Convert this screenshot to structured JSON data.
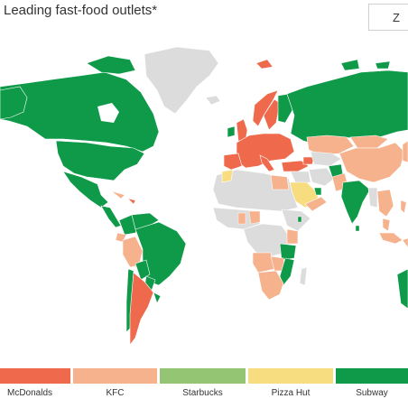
{
  "title": "Leading fast-food outlets*",
  "zoom_label": "Z",
  "legend": [
    {
      "label": "McDonalds",
      "color": "#ef6a4c"
    },
    {
      "label": "KFC",
      "color": "#f6b28d"
    },
    {
      "label": "Starbucks",
      "color": "#93c572"
    },
    {
      "label": "Pizza Hut",
      "color": "#f7dd80"
    },
    {
      "label": "Subway",
      "color": "#0f9a4a"
    }
  ],
  "colors": {
    "no_data": "#dcdcdc",
    "McDonalds": "#ef6a4c",
    "KFC": "#f6b28d",
    "Starbucks": "#93c572",
    "Pizza Hut": "#f7dd80",
    "Subway": "#0f9a4a"
  }
}
